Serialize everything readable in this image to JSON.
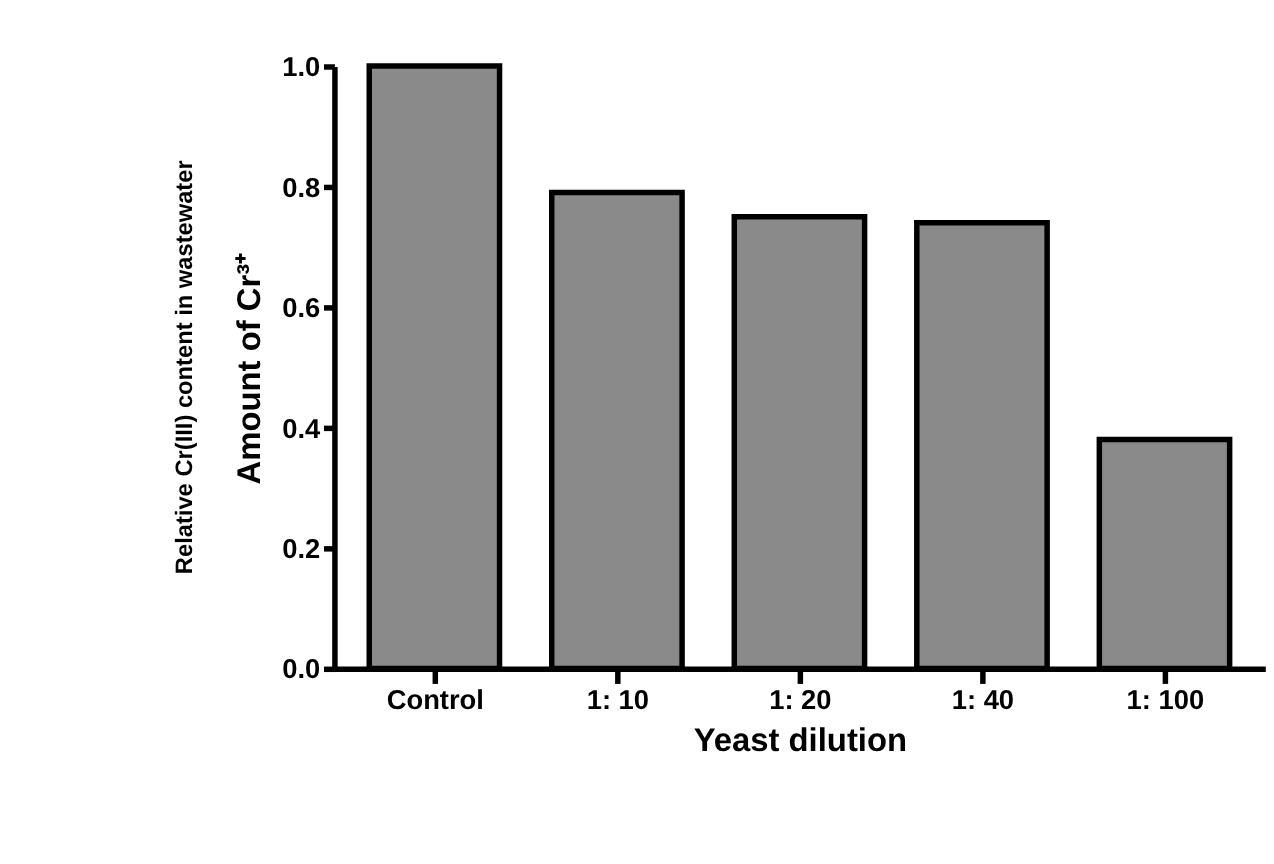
{
  "chart_data": {
    "type": "bar",
    "categories": [
      "Control",
      "1: 10",
      "1: 20",
      "1: 40",
      "1: 100"
    ],
    "values": [
      1.0,
      0.79,
      0.75,
      0.74,
      0.38
    ],
    "color": "#8a8a8a",
    "xlabel": "Yeast dilution",
    "ylabel": "Amount of Cr³⁺",
    "annotations": [
      "Relative Cr(III) content in wastewater"
    ],
    "ylim": [
      0,
      1.0
    ],
    "yticks": [
      {
        "value": 0,
        "label": "0.0"
      },
      {
        "value": 0.2,
        "label": "0.2"
      },
      {
        "value": 0.4,
        "label": "0.4"
      },
      {
        "value": 0.6,
        "label": "0.6"
      },
      {
        "value": 0.8,
        "label": "0.8"
      },
      {
        "value": 1,
        "label": "1.0"
      }
    ],
    "grid": false
  }
}
